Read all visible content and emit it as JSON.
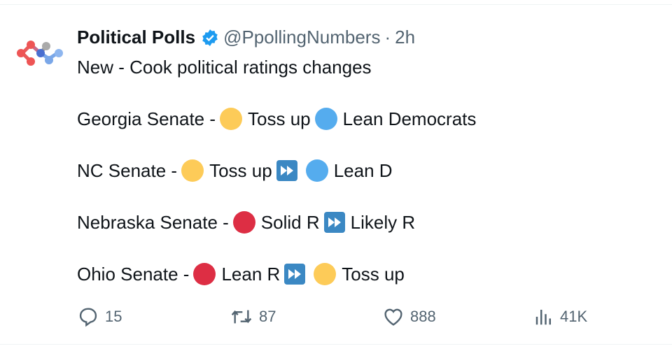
{
  "tweet": {
    "author_name": "Political Polls",
    "verified": true,
    "handle": "@PpollingNumbers",
    "separator": "·",
    "time": "2h",
    "lines": [
      [
        {
          "t": "text",
          "v": "New - Cook political ratings changes"
        }
      ],
      [
        {
          "t": "text",
          "v": "Georgia Senate -"
        },
        {
          "t": "dot",
          "c": "#fdcb58"
        },
        {
          "t": "text",
          "v": "Toss up"
        },
        {
          "t": "dot",
          "c": "#55acee"
        },
        {
          "t": "text",
          "v": "Lean Democrats"
        }
      ],
      [
        {
          "t": "text",
          "v": "NC Senate -"
        },
        {
          "t": "dot",
          "c": "#fdcb58"
        },
        {
          "t": "text",
          "v": "Toss up"
        },
        {
          "t": "ff"
        },
        {
          "t": "dot",
          "c": "#55acee"
        },
        {
          "t": "text",
          "v": "Lean D"
        }
      ],
      [
        {
          "t": "text",
          "v": "Nebraska Senate -"
        },
        {
          "t": "dot",
          "c": "#dd2e44"
        },
        {
          "t": "text",
          "v": "Solid R"
        },
        {
          "t": "ff"
        },
        {
          "t": "text",
          "v": "Likely R"
        }
      ],
      [
        {
          "t": "text",
          "v": "Ohio Senate -"
        },
        {
          "t": "dot",
          "c": "#dd2e44"
        },
        {
          "t": "text",
          "v": "Lean R"
        },
        {
          "t": "ff"
        },
        {
          "t": "dot",
          "c": "#fdcb58"
        },
        {
          "t": "text",
          "v": "Toss up"
        }
      ]
    ]
  },
  "actions": {
    "replies": "15",
    "reposts": "87",
    "likes": "888",
    "views": "41K"
  },
  "icons": {
    "reply": "speech-bubble-icon",
    "repost": "repost-icon",
    "like": "heart-icon",
    "views": "bar-chart-icon",
    "arrow": "fast-forward-icon",
    "verified": "verified-badge-icon"
  },
  "colors": {
    "verified": "#1d9bf0",
    "toss_up": "#fdcb58",
    "lean_d": "#55acee",
    "republican": "#dd2e44",
    "arrow_bg": "#3b88c3"
  }
}
